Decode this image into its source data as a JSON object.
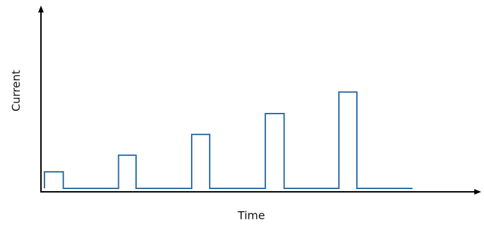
{
  "chart_data": {
    "type": "line",
    "x_label": "Time",
    "y_label": "Current",
    "xlim": [
      0,
      100
    ],
    "ylim": [
      0,
      100
    ],
    "x": [
      0.8,
      0.8,
      5.1,
      5.1,
      17.7,
      17.7,
      21.7,
      21.7,
      34.4,
      34.4,
      38.5,
      38.5,
      51.2,
      51.2,
      55.5,
      55.5,
      68,
      68,
      72.1,
      72.1,
      84.8
    ],
    "series": [
      {
        "color": "#2f6ea8",
        "values": [
          1.5,
          10.5,
          10.5,
          1.5,
          1.5,
          19.5,
          19.5,
          1.5,
          1.5,
          30.8,
          30.8,
          1.5,
          1.5,
          42.1,
          42.1,
          1.5,
          1.5,
          53.8,
          53.8,
          1.5,
          1.5
        ]
      }
    ]
  }
}
